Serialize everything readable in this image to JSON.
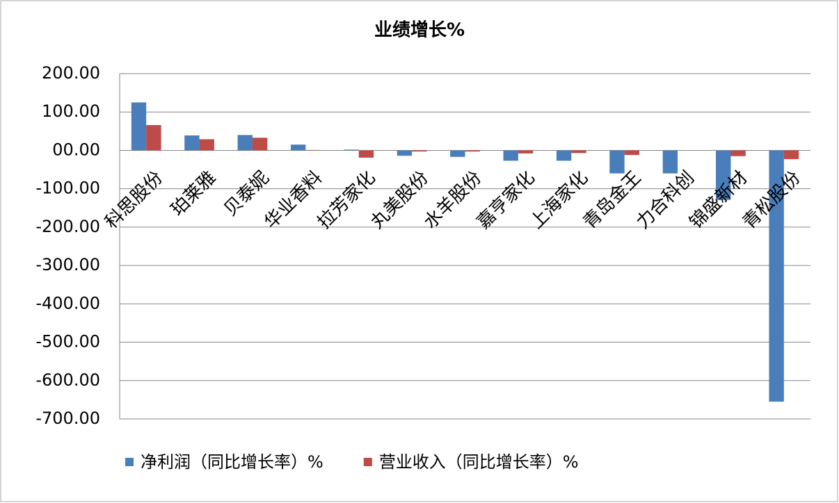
{
  "chart_data": {
    "type": "bar",
    "title": "业绩增长%",
    "categories": [
      "科思股份",
      "珀莱雅",
      "贝泰妮",
      "华业香料",
      "拉芳家化",
      "丸美股份",
      "水羊股份",
      "嘉亨家化",
      "上海家化",
      "青岛金王",
      "力合科创",
      "锦盛新材",
      "青松股份"
    ],
    "series": [
      {
        "name": "净利润（同比增长率）%",
        "color": "#4a7ebb",
        "values": [
          125,
          39,
          40,
          15,
          2,
          -14,
          -17,
          -27,
          -27,
          -60,
          -60,
          -129,
          -655
        ]
      },
      {
        "name": "营业收入（同比增长率）%",
        "color": "#be4b48",
        "values": [
          66,
          29,
          33,
          1,
          -19,
          -3,
          -3,
          -8,
          -7,
          -12,
          0,
          -15,
          -23
        ]
      }
    ],
    "ylim": [
      -700,
      200
    ],
    "yticks": [
      {
        "value": 200,
        "label": "200.00"
      },
      {
        "value": 100,
        "label": "100.00"
      },
      {
        "value": 0,
        "label": "00.00"
      },
      {
        "value": -100,
        "label": "-100.00"
      },
      {
        "value": -200,
        "label": "-200.00"
      },
      {
        "value": -300,
        "label": "-300.00"
      },
      {
        "value": -400,
        "label": "-400.00"
      },
      {
        "value": -500,
        "label": "-500.00"
      },
      {
        "value": -600,
        "label": "-600.00"
      },
      {
        "value": -700,
        "label": "-700.00"
      }
    ],
    "grid": true,
    "legend": "bottom"
  }
}
